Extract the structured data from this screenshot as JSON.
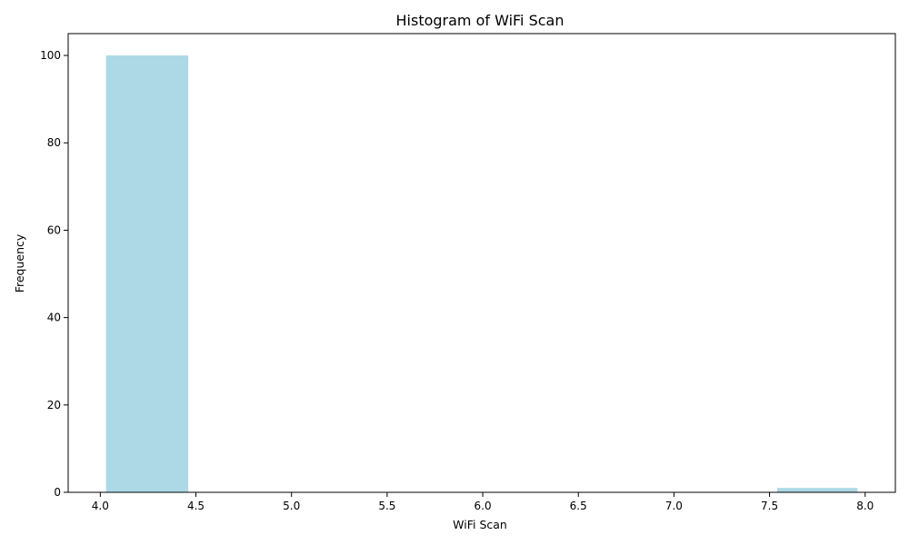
{
  "chart_data": {
    "type": "bar",
    "title": "Histogram of WiFi Scan",
    "xlabel": "WiFi Scan",
    "ylabel": "Frequency",
    "xlim": [
      3.832,
      8.158
    ],
    "ylim": [
      0,
      105
    ],
    "x_ticks": [
      "4.0",
      "4.5",
      "5.0",
      "5.5",
      "6.0",
      "6.5",
      "7.0",
      "7.5",
      "8.0"
    ],
    "y_ticks": [
      "0",
      "20",
      "40",
      "60",
      "80",
      "100"
    ],
    "bins": [
      {
        "start": 4.03,
        "end": 4.46,
        "count": 100
      },
      {
        "start": 4.46,
        "end": 4.89,
        "count": 0
      },
      {
        "start": 4.89,
        "end": 5.32,
        "count": 0
      },
      {
        "start": 5.32,
        "end": 5.75,
        "count": 0
      },
      {
        "start": 5.75,
        "end": 6.18,
        "count": 0
      },
      {
        "start": 6.18,
        "end": 6.61,
        "count": 0
      },
      {
        "start": 6.61,
        "end": 7.04,
        "count": 0
      },
      {
        "start": 7.04,
        "end": 7.47,
        "count": 0
      },
      {
        "start": 7.54,
        "end": 7.96,
        "count": 1
      }
    ],
    "bar_color": "#add8e6",
    "grid": false,
    "legend": "none"
  }
}
